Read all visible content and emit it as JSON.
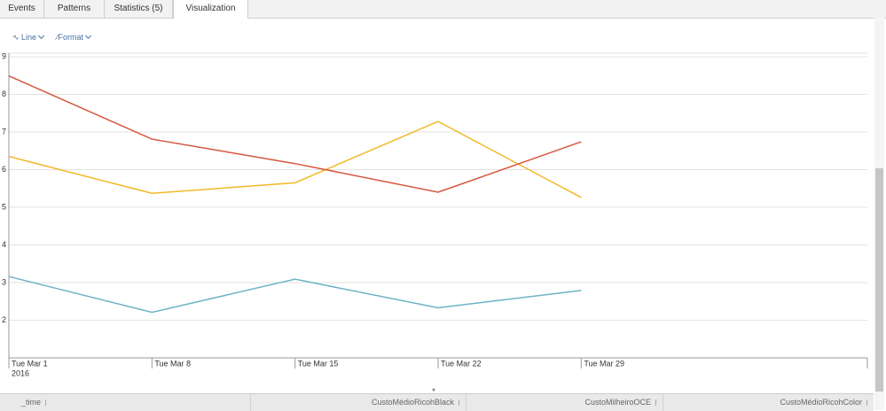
{
  "tabs": [
    "Events",
    "Patterns",
    "Statistics (5)",
    "Visualization"
  ],
  "toolbar": [
    "Line",
    "Format"
  ],
  "chart_data": {
    "type": "line",
    "categories": [
      "Tue Mar 1",
      "Tue Mar 8",
      "Tue Mar 15",
      "Tue Mar 22",
      "Tue Mar 29"
    ],
    "x_year": "2016",
    "series": [
      {
        "name": "CustoMédioRicohBlack",
        "color": "#6db3c5",
        "values": [
          3.16,
          2.21,
          3.09,
          2.33,
          2.79
        ]
      },
      {
        "name": "CustoMilheiroOCE",
        "color": "#f2b827",
        "values": [
          6.35,
          5.37,
          5.65,
          7.28,
          5.26
        ]
      },
      {
        "name": "CustoMédioRicohColor",
        "color": "#d6563c",
        "values": [
          8.49,
          6.81,
          6.16,
          5.4,
          6.74
        ]
      }
    ],
    "ylim": [
      1,
      9
    ],
    "yticks": [
      2,
      3,
      4,
      5,
      6,
      7,
      8,
      9
    ],
    "grid": true
  },
  "table": {
    "columns": [
      "_time",
      "CustoMédioRicohBlack",
      "CustoMilheiroOCE",
      "CustoMédioRicohColor"
    ]
  }
}
